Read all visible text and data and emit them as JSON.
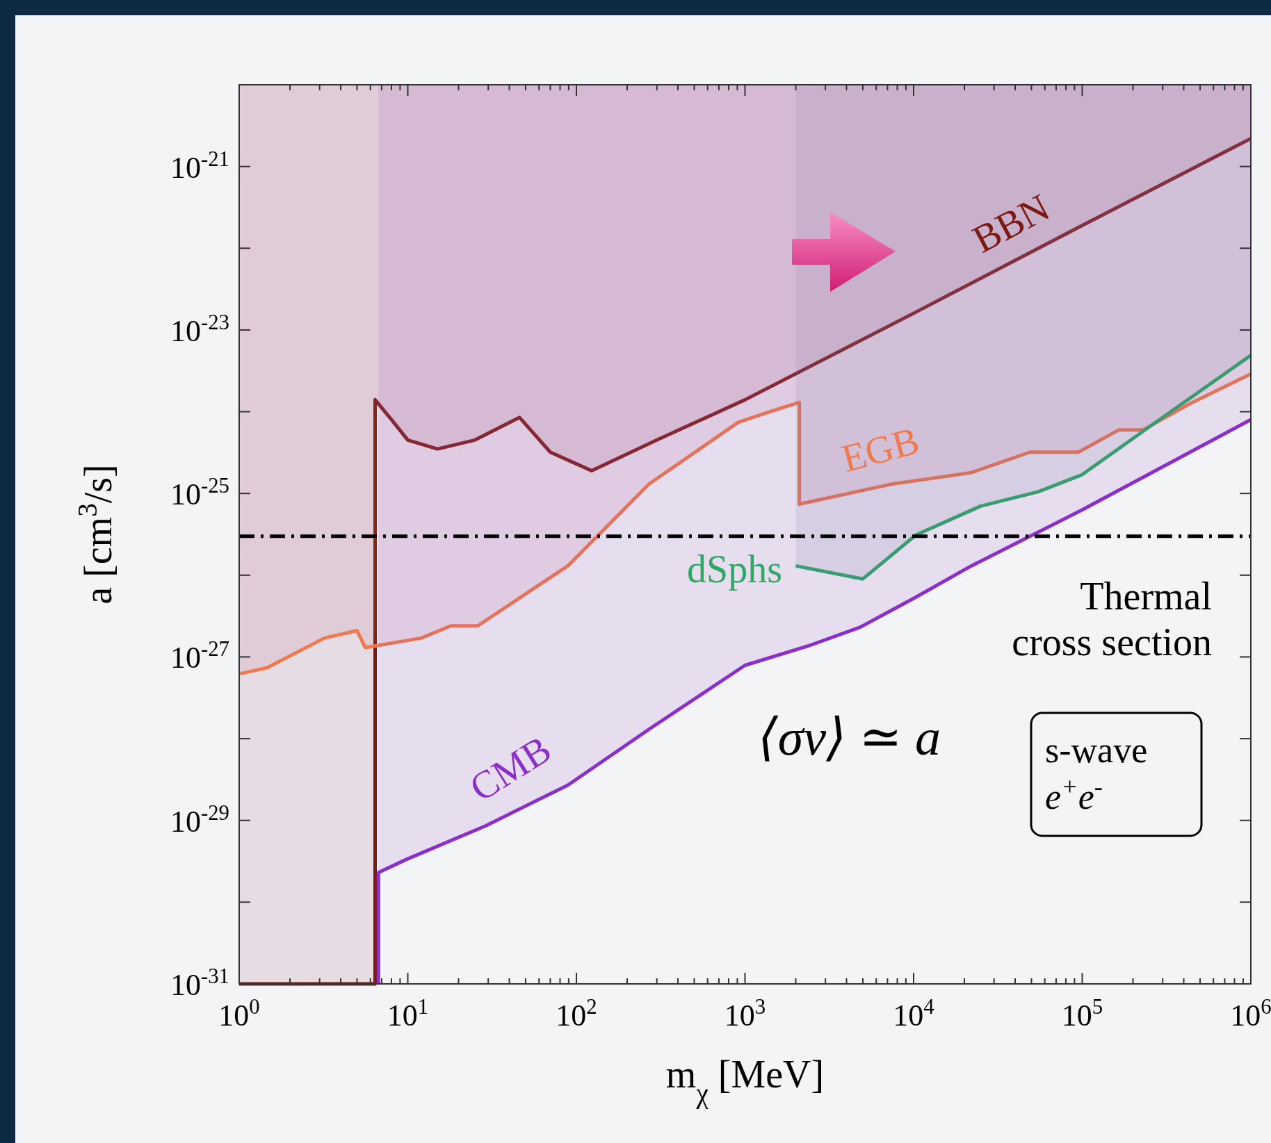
{
  "chart_data": {
    "type": "line",
    "xlabel": "m$_{χ}$ [MeV]",
    "ylabel": "a [cm$^{3}$/s]",
    "log": "xy",
    "xlim": [
      1,
      1000000
    ],
    "ylim": [
      1e-31,
      1e-20
    ],
    "xticks": [
      {
        "value": 1,
        "label": "10$^{0}$"
      },
      {
        "value": 2,
        "label": null
      },
      {
        "value": 3,
        "label": null
      },
      {
        "value": 4,
        "label": null
      },
      {
        "value": 5,
        "label": null
      },
      {
        "value": 6,
        "label": null
      },
      {
        "value": 7,
        "label": null
      },
      {
        "value": 8,
        "label": null
      },
      {
        "value": 9,
        "label": null
      },
      {
        "value": 10,
        "label": "10$^{1}$"
      },
      {
        "value": 20,
        "label": null
      },
      {
        "value": 30,
        "label": null
      },
      {
        "value": 40,
        "label": null
      },
      {
        "value": 50,
        "label": null
      },
      {
        "value": 60,
        "label": null
      },
      {
        "value": 70,
        "label": null
      },
      {
        "value": 80,
        "label": null
      },
      {
        "value": 90,
        "label": null
      },
      {
        "value": 100,
        "label": "10$^{2}$"
      },
      {
        "value": 200,
        "label": null
      },
      {
        "value": 300,
        "label": null
      },
      {
        "value": 400,
        "label": null
      },
      {
        "value": 500,
        "label": null
      },
      {
        "value": 600,
        "label": null
      },
      {
        "value": 700,
        "label": null
      },
      {
        "value": 800,
        "label": null
      },
      {
        "value": 900,
        "label": null
      },
      {
        "value": 1000,
        "label": "10$^{3}$"
      },
      {
        "value": 2000,
        "label": null
      },
      {
        "value": 3000,
        "label": null
      },
      {
        "value": 4000,
        "label": null
      },
      {
        "value": 5000,
        "label": null
      },
      {
        "value": 6000,
        "label": null
      },
      {
        "value": 7000,
        "label": null
      },
      {
        "value": 8000,
        "label": null
      },
      {
        "value": 9000,
        "label": null
      },
      {
        "value": 10000,
        "label": "10$^{4}$"
      },
      {
        "value": 20000,
        "label": null
      },
      {
        "value": 30000,
        "label": null
      },
      {
        "value": 40000,
        "label": null
      },
      {
        "value": 50000,
        "label": null
      },
      {
        "value": 60000,
        "label": null
      },
      {
        "value": 70000,
        "label": null
      },
      {
        "value": 80000,
        "label": null
      },
      {
        "value": 90000,
        "label": null
      },
      {
        "value": 100000,
        "label": "10$^{5}$"
      },
      {
        "value": 200000,
        "label": null
      },
      {
        "value": 300000,
        "label": null
      },
      {
        "value": 400000,
        "label": null
      },
      {
        "value": 500000,
        "label": null
      },
      {
        "value": 600000,
        "label": null
      },
      {
        "value": 700000,
        "label": null
      },
      {
        "value": 800000,
        "label": null
      },
      {
        "value": 900000,
        "label": null
      },
      {
        "value": 1000000,
        "label": "10$^{6}$"
      }
    ],
    "yticks": [
      {
        "value": 1e-31,
        "label": "10$^{-31}$"
      },
      {
        "value": 1e-30,
        "label": null
      },
      {
        "value": 1e-29,
        "label": "10$^{-29}$"
      },
      {
        "value": 1e-28,
        "label": null
      },
      {
        "value": 1e-27,
        "label": "10$^{-27}$"
      },
      {
        "value": 1e-26,
        "label": null
      },
      {
        "value": 1e-25,
        "label": "10$^{-25}$"
      },
      {
        "value": 1e-24,
        "label": null
      },
      {
        "value": 1e-23,
        "label": "10$^{-23}$"
      },
      {
        "value": 1e-22,
        "label": null
      },
      {
        "value": 1e-21,
        "label": "10$^{-21}$"
      }
    ],
    "series": [
      {
        "name": "BBN",
        "color": "#7b1a12",
        "x": [
          1,
          6.4,
          6.4,
          8,
          10,
          15,
          25,
          46,
          70,
          123,
          300,
          1000,
          10000,
          100000,
          1000000
        ],
        "values": [
          1e-31,
          1e-31,
          1.4e-24,
          8e-25,
          4.5e-25,
          3.5e-25,
          4.5e-25,
          8.5e-25,
          3.2e-25,
          1.9e-25,
          4.5e-25,
          1.4e-24,
          1.6e-23,
          1.9e-22,
          2.2e-21
        ],
        "lower": [
          1e-31,
          1e-31,
          1.4e-24,
          8e-25,
          4.5e-25,
          3.5e-25,
          4.5e-25,
          8.5e-25,
          3.2e-25,
          1.9e-25,
          4.5e-25,
          1.4e-24,
          1.6e-23,
          1.9e-22,
          2.2e-21
        ],
        "upper": [
          1e-20,
          1e-20,
          1e-20,
          1e-20,
          1e-20,
          1e-20,
          1e-20,
          1e-20,
          1e-20,
          1e-20,
          1e-20,
          1e-20,
          1e-20,
          1e-20,
          1e-20
        ]
      },
      {
        "name": "EGB",
        "color": "#f07a4e",
        "x": [
          1,
          1.47,
          3.2,
          5,
          5.6,
          12,
          18,
          26,
          89,
          269,
          910,
          1400,
          2100,
          2100,
          7400,
          22000,
          49000,
          95000,
          165000,
          230000,
          450000,
          1000000
        ],
        "values": [
          6.2e-28,
          7.4e-28,
          1.7e-27,
          2.1e-27,
          1.3e-27,
          1.7e-27,
          2.4e-27,
          2.4e-27,
          1.3e-26,
          1.3e-25,
          7.4e-25,
          1e-24,
          1.3e-24,
          7.4e-26,
          1.3e-25,
          1.8e-25,
          3.2e-25,
          3.2e-25,
          6e-25,
          6e-25,
          1.3e-24,
          2.9e-24
        ],
        "lower": [
          6.2e-28,
          7.4e-28,
          1.7e-27,
          2.1e-27,
          1.3e-27,
          1.7e-27,
          2.4e-27,
          2.4e-27,
          1.3e-26,
          1.3e-25,
          7.4e-25,
          1e-24,
          1.3e-24,
          7.4e-26,
          1.3e-25,
          1.8e-25,
          3.2e-25,
          3.2e-25,
          6e-25,
          6e-25,
          1.3e-24,
          2.9e-24
        ],
        "upper": [
          1e-20,
          1e-20,
          1e-20,
          1e-20,
          1e-20,
          1e-20,
          1e-20,
          1e-20,
          1e-20,
          1e-20,
          1e-20,
          1e-20,
          1e-20,
          1e-20,
          1e-20,
          1e-20,
          1e-20,
          1e-20,
          1e-20,
          1e-20,
          1e-20,
          1e-20
        ]
      },
      {
        "name": "dSphs",
        "color": "#2fa866",
        "x": [
          2000,
          5000,
          10300,
          25000,
          55000,
          100000,
          257000,
          1000000
        ],
        "values": [
          1.3e-26,
          9e-27,
          3.1e-26,
          7e-26,
          1.05e-25,
          1.7e-25,
          6.8e-25,
          4.9e-24
        ],
        "lower": [
          1.3e-26,
          9e-27,
          3.1e-26,
          7e-26,
          1.05e-25,
          1.7e-25,
          6.8e-25,
          4.9e-24
        ],
        "upper": [
          1e-20,
          1e-20,
          1e-20,
          1e-20,
          1e-20,
          1e-20,
          1e-20,
          1e-20
        ]
      },
      {
        "name": "CMB",
        "color": "#8a2fc8",
        "x": [
          6.7,
          6.7,
          9.7,
          29,
          89,
          269,
          1000,
          2460,
          4800,
          10000,
          22000,
          100000,
          1000000
        ],
        "values": [
          1e-31,
          2.3e-30,
          3.3e-30,
          8.6e-30,
          2.7e-29,
          1.3e-28,
          7.9e-28,
          1.4e-27,
          2.3e-27,
          5.2e-27,
          1.3e-26,
          6.3e-26,
          8e-25
        ],
        "lower": [
          1e-31,
          2.3e-30,
          3.3e-30,
          8.6e-30,
          2.7e-29,
          1.3e-28,
          7.9e-28,
          1.4e-27,
          2.3e-27,
          5.2e-27,
          1.3e-26,
          6.3e-26,
          8e-25
        ],
        "upper": [
          1e-20,
          1e-20,
          1e-20,
          1e-20,
          1e-20,
          1e-20,
          1e-20,
          1e-20,
          1e-20,
          1e-20,
          1e-20,
          1e-20,
          1e-20
        ]
      }
    ],
    "ref_lines": [
      {
        "axis": "y",
        "value": 3e-26,
        "label": "Thermal\ncross section",
        "color": "#000000",
        "line_style": "dashdot"
      }
    ],
    "annotations": [
      "⟨σv⟩ ≃ a",
      "s-wave",
      "e$^{+}$e$^{-}$"
    ]
  }
}
